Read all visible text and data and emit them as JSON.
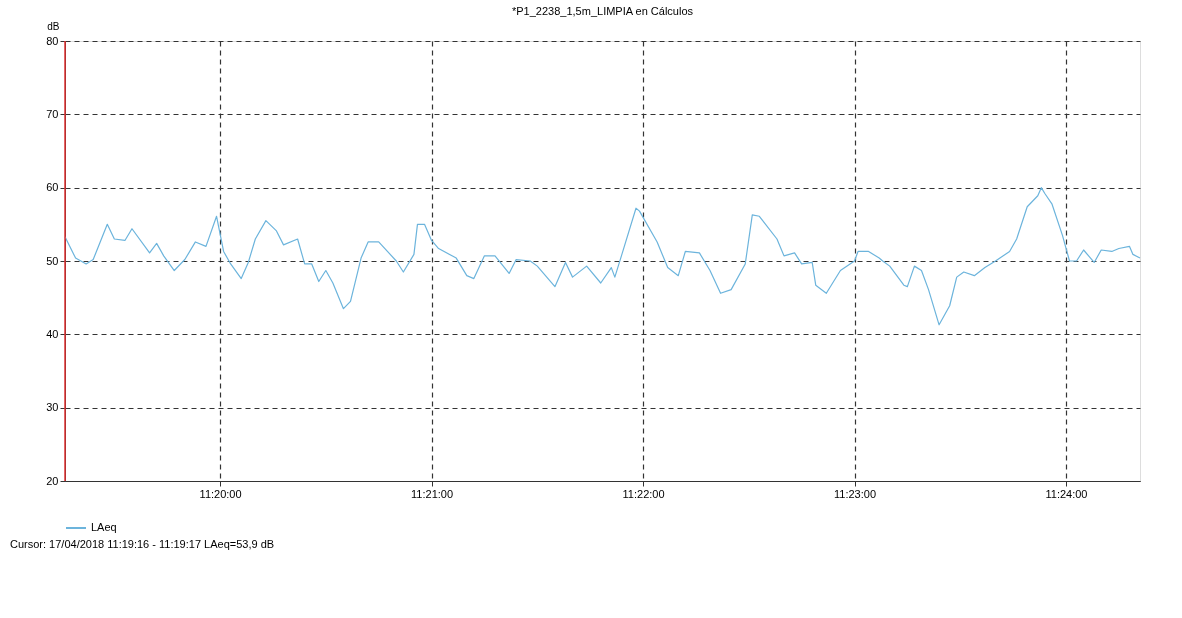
{
  "chart_data": {
    "type": "line",
    "title": "*P1_2238_1,5m_LIMPIA en Cálculos",
    "ylabel": "dB",
    "annotations": [
      "Cursor: 17/04/2018 11:19:16 - 11:19:17  LAeq=53,9 dB"
    ],
    "x": [
      "2018-04-17T11:19:16",
      "2018-04-17T11:19:19",
      "2018-04-17T11:19:22",
      "2018-04-17T11:19:24",
      "2018-04-17T11:19:28",
      "2018-04-17T11:19:30",
      "2018-04-17T11:19:33",
      "2018-04-17T11:19:35",
      "2018-04-17T11:19:40",
      "2018-04-17T11:19:42",
      "2018-04-17T11:19:44",
      "2018-04-17T11:19:47",
      "2018-04-17T11:19:50",
      "2018-04-17T11:19:53",
      "2018-04-17T11:19:56",
      "2018-04-17T11:19:59",
      "2018-04-17T11:20:01",
      "2018-04-17T11:20:03",
      "2018-04-17T11:20:06",
      "2018-04-17T11:20:08",
      "2018-04-17T11:20:10",
      "2018-04-17T11:20:13",
      "2018-04-17T11:20:16",
      "2018-04-17T11:20:18",
      "2018-04-17T11:20:22",
      "2018-04-17T11:20:24",
      "2018-04-17T11:20:26",
      "2018-04-17T11:20:28",
      "2018-04-17T11:20:30",
      "2018-04-17T11:20:32",
      "2018-04-17T11:20:35",
      "2018-04-17T11:20:37",
      "2018-04-17T11:20:40",
      "2018-04-17T11:20:42",
      "2018-04-17T11:20:45",
      "2018-04-17T11:20:50",
      "2018-04-17T11:20:52",
      "2018-04-17T11:20:55",
      "2018-04-17T11:20:56",
      "2018-04-17T11:20:58",
      "2018-04-17T11:21:00",
      "2018-04-17T11:21:02",
      "2018-04-17T11:21:07",
      "2018-04-17T11:21:10",
      "2018-04-17T11:21:12",
      "2018-04-17T11:21:15",
      "2018-04-17T11:21:18",
      "2018-04-17T11:21:22",
      "2018-04-17T11:21:24",
      "2018-04-17T11:21:28",
      "2018-04-17T11:21:30",
      "2018-04-17T11:21:35",
      "2018-04-17T11:21:38",
      "2018-04-17T11:21:40",
      "2018-04-17T11:21:44",
      "2018-04-17T11:21:48",
      "2018-04-17T11:21:51",
      "2018-04-17T11:21:52",
      "2018-04-17T11:21:54",
      "2018-04-17T11:21:58",
      "2018-04-17T11:21:59",
      "2018-04-17T11:22:04",
      "2018-04-17T11:22:07",
      "2018-04-17T11:22:10",
      "2018-04-17T11:22:12",
      "2018-04-17T11:22:16",
      "2018-04-17T11:22:19",
      "2018-04-17T11:22:22",
      "2018-04-17T11:22:25",
      "2018-04-17T11:22:29",
      "2018-04-17T11:22:31",
      "2018-04-17T11:22:33",
      "2018-04-17T11:22:38",
      "2018-04-17T11:22:40",
      "2018-04-17T11:22:43",
      "2018-04-17T11:22:45",
      "2018-04-17T11:22:48",
      "2018-04-17T11:22:49",
      "2018-04-17T11:22:52",
      "2018-04-17T11:22:56",
      "2018-04-17T11:23:00",
      "2018-04-17T11:23:01",
      "2018-04-17T11:23:04",
      "2018-04-17T11:23:07",
      "2018-04-17T11:23:08",
      "2018-04-17T11:23:10",
      "2018-04-17T11:23:14",
      "2018-04-17T11:23:15",
      "2018-04-17T11:23:17",
      "2018-04-17T11:23:19",
      "2018-04-17T11:23:21",
      "2018-04-17T11:23:24",
      "2018-04-17T11:23:27",
      "2018-04-17T11:23:29",
      "2018-04-17T11:23:31",
      "2018-04-17T11:23:34",
      "2018-04-17T11:23:37",
      "2018-04-17T11:23:40",
      "2018-04-17T11:23:44",
      "2018-04-17T11:23:46",
      "2018-04-17T11:23:49",
      "2018-04-17T11:23:52",
      "2018-04-17T11:23:53",
      "2018-04-17T11:23:54",
      "2018-04-17T11:23:56",
      "2018-04-17T11:23:59",
      "2018-04-17T11:24:01",
      "2018-04-17T11:24:03",
      "2018-04-17T11:24:05",
      "2018-04-17T11:24:08",
      "2018-04-17T11:24:10",
      "2018-04-17T11:24:13",
      "2018-04-17T11:24:15",
      "2018-04-17T11:24:18",
      "2018-04-17T11:24:19",
      "2018-04-17T11:24:21"
    ],
    "series": [
      {
        "name": "LAeq",
        "color": "#6cb4dc",
        "values": [
          53.3,
          50.4,
          49.6,
          50.2,
          55.0,
          53.0,
          52.8,
          54.4,
          51.1,
          52.4,
          50.7,
          48.7,
          50.2,
          52.6,
          52.0,
          56.1,
          51.3,
          49.6,
          47.6,
          49.8,
          53.0,
          55.5,
          54.1,
          52.2,
          53.0,
          49.6,
          49.6,
          47.2,
          48.7,
          47.0,
          43.5,
          44.5,
          50.4,
          52.6,
          52.6,
          50.0,
          48.5,
          50.9,
          55.0,
          55.0,
          52.8,
          51.7,
          50.4,
          48.0,
          47.6,
          50.7,
          50.7,
          48.3,
          50.2,
          50.0,
          49.3,
          46.5,
          49.8,
          47.8,
          49.3,
          47.0,
          49.1,
          47.8,
          50.9,
          57.2,
          56.8,
          52.6,
          49.1,
          48.0,
          51.3,
          51.1,
          48.7,
          45.6,
          46.1,
          49.6,
          56.3,
          56.1,
          53.0,
          50.7,
          51.1,
          49.6,
          49.8,
          46.7,
          45.6,
          48.7,
          50.0,
          51.3,
          51.3,
          50.4,
          50.0,
          49.3,
          46.7,
          46.5,
          49.3,
          48.7,
          46.1,
          41.3,
          43.9,
          47.8,
          48.5,
          48.0,
          49.1,
          50.0,
          51.3,
          53.0,
          57.4,
          58.9,
          60.0,
          59.2,
          57.8,
          53.5,
          50.0,
          50.0,
          51.5,
          49.8,
          51.5,
          51.3,
          51.7,
          52.0,
          50.9,
          50.4
        ]
      }
    ],
    "xlim": [
      "2018-04-17T11:19:16",
      "2018-04-17T11:24:21"
    ],
    "xticks": [
      {
        "value": "2018-04-17T11:20:00",
        "label": "11:20:00"
      },
      {
        "value": "2018-04-17T11:21:00",
        "label": "11:21:00"
      },
      {
        "value": "2018-04-17T11:22:00",
        "label": "11:22:00"
      },
      {
        "value": "2018-04-17T11:23:00",
        "label": "11:23:00"
      },
      {
        "value": "2018-04-17T11:24:00",
        "label": "11:24:00"
      }
    ],
    "ylim": [
      20,
      80
    ],
    "yticks": [
      20,
      30,
      40,
      50,
      60,
      70,
      80
    ],
    "ref_lines": [
      {
        "axis": "x",
        "value": "2018-04-17T11:19:16",
        "color": "#e03030"
      }
    ],
    "grid": true,
    "legend": "bottom left",
    "line_style": "solid",
    "marker": "none"
  }
}
